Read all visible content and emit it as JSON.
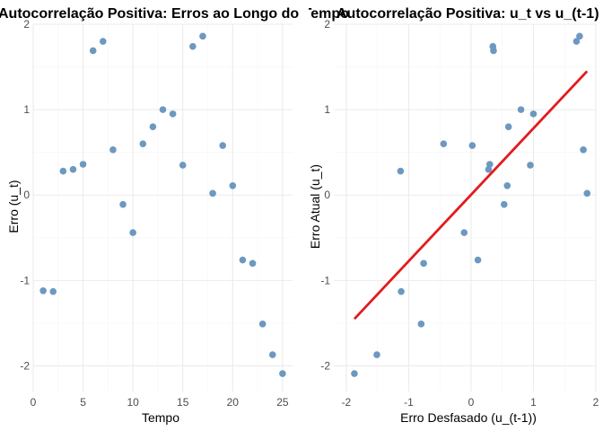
{
  "chart_data": [
    {
      "type": "scatter",
      "title": "Autocorrelação Positiva: Erros ao Longo do Tempo",
      "xlabel": "Tempo",
      "ylabel": "Erro (u_t)",
      "xlim": [
        0,
        26
      ],
      "ylim": [
        -2.3,
        2.0
      ],
      "xticks": [
        0,
        5,
        10,
        15,
        20,
        25
      ],
      "yticks": [
        -2,
        -1,
        0,
        1,
        2
      ],
      "xtick_labels": [
        "0",
        "5",
        "10",
        "15",
        "20",
        "25"
      ],
      "ytick_labels": [
        "-2",
        "-1",
        "0",
        "1",
        "2"
      ],
      "grid": true,
      "point_color": "#6d98bf",
      "x": [
        1,
        2,
        3,
        4,
        5,
        6,
        7,
        8,
        9,
        10,
        11,
        12,
        13,
        14,
        15,
        16,
        17,
        18,
        19,
        20,
        21,
        22,
        23,
        24,
        25
      ],
      "y": [
        -1.12,
        -1.13,
        0.28,
        0.3,
        0.36,
        1.69,
        1.8,
        0.53,
        -0.11,
        -0.44,
        0.6,
        0.8,
        1.0,
        0.95,
        0.35,
        1.74,
        1.86,
        0.02,
        0.58,
        0.11,
        -0.76,
        -0.8,
        -1.51,
        -1.87,
        -2.09
      ]
    },
    {
      "type": "scatter",
      "title": "Autocorrelação Positiva: u_t vs u_(t-1)",
      "xlabel": "Erro Desfasado (u_(t-1))",
      "ylabel": "Erro Atual (u_t)",
      "xlim": [
        -2.2,
        2.0
      ],
      "ylim": [
        -2.3,
        2.0
      ],
      "xticks": [
        -2,
        -1,
        0,
        1,
        2
      ],
      "yticks": [
        -2,
        -1,
        0,
        1,
        2
      ],
      "xtick_labels": [
        "-2",
        "-1",
        "0",
        "1",
        "2"
      ],
      "ytick_labels": [
        "-2",
        "-1",
        "0",
        "1",
        "2"
      ],
      "grid": true,
      "point_color": "#6d98bf",
      "line_color": "#e31a1c",
      "x": [
        -1.12,
        -1.13,
        0.28,
        0.3,
        0.36,
        1.69,
        1.8,
        0.53,
        -0.11,
        -0.44,
        0.6,
        0.8,
        1.0,
        0.95,
        0.35,
        1.74,
        1.86,
        0.02,
        0.58,
        0.11,
        -0.76,
        -0.8,
        -1.51,
        -1.87
      ],
      "y": [
        -1.13,
        0.28,
        0.3,
        0.36,
        1.69,
        1.8,
        0.53,
        -0.11,
        -0.44,
        0.6,
        0.8,
        1.0,
        0.95,
        0.35,
        1.74,
        1.86,
        0.02,
        0.58,
        0.11,
        -0.76,
        -0.8,
        -1.51,
        -1.87,
        -2.09
      ],
      "fit_line": {
        "x": [
          -1.87,
          1.86
        ],
        "y": [
          -1.45,
          1.45
        ]
      }
    }
  ]
}
